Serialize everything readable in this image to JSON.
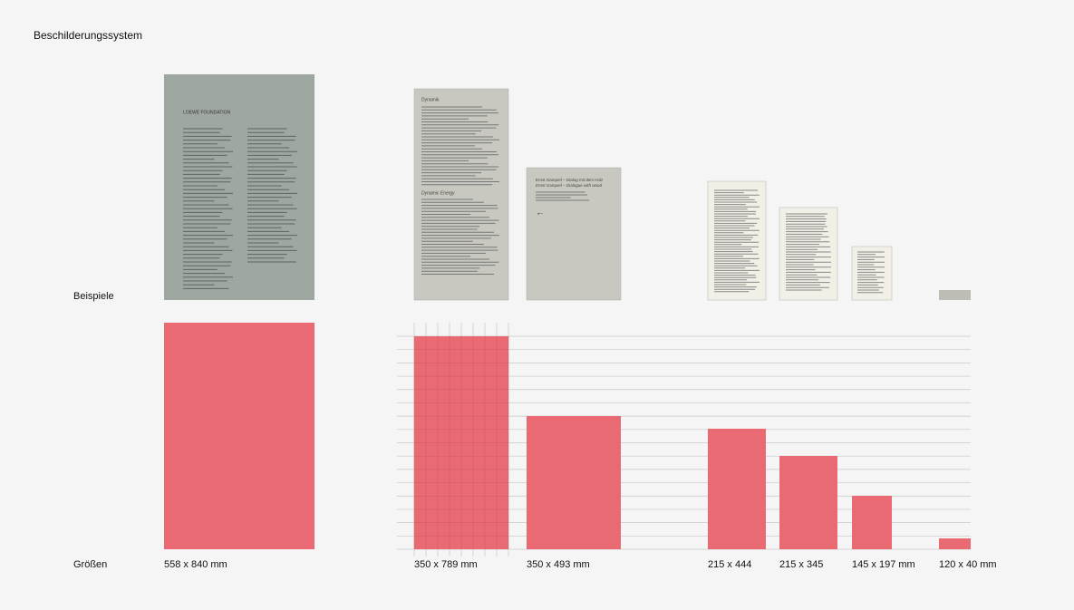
{
  "header": {
    "title": "Beschilderungssystem"
  },
  "row_labels": {
    "examples": "Beispiele",
    "sizes": "Größen"
  },
  "sizes": [
    "558  x 840 mm",
    "350 x 789 mm",
    "350 x 493 mm",
    "215 x 444",
    "215 x  345",
    "145 x 197 mm",
    "120 x 40 mm"
  ],
  "signs": {
    "foundation": "LOEWE FOUNDATION",
    "heading_de": "Dynamik",
    "heading_en": "Dynamic Energy",
    "title_de": "Ernst Gamperl – Dialog mit dem Holz",
    "title_en": "Ernst Gamperl – Dialogue with wood",
    "arrow": "←"
  }
}
